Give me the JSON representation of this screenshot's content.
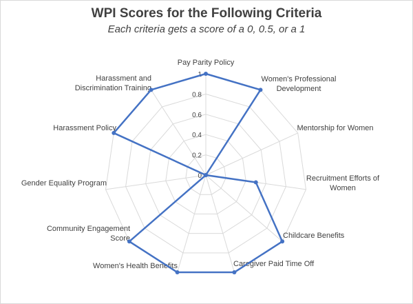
{
  "chart_data": {
    "type": "radar",
    "title": "WPI Scores for the Following Criteria",
    "subtitle": "Each criteria gets a score of a 0, 0.5, or a 1",
    "categories": [
      "Pay Parity Policy",
      "Women's Professional Development",
      "Mentorship for Women",
      "Recruitment Efforts of Women",
      "Childcare Benefits",
      "Caregiver Paid Time Off",
      "Women's Health Benefits",
      "Community Engagement Score",
      "Gender Equality Program",
      "Harassment Policy",
      "Harassment and Discrimination Training"
    ],
    "series": [
      {
        "values": [
          1,
          1,
          0,
          0.5,
          1,
          1,
          1,
          1,
          0,
          1,
          1
        ]
      }
    ],
    "rlim": [
      0,
      1
    ],
    "ticks": [
      0,
      0.2,
      0.4,
      0.6,
      0.8,
      1
    ],
    "tick_labels": [
      "0",
      "0.2",
      "0.4",
      "0.6",
      "0.8",
      "1"
    ],
    "grid": true,
    "legend": false
  },
  "colors": {
    "series": "#4472c4",
    "grid": "#d9d9d9",
    "text": "#404040"
  }
}
